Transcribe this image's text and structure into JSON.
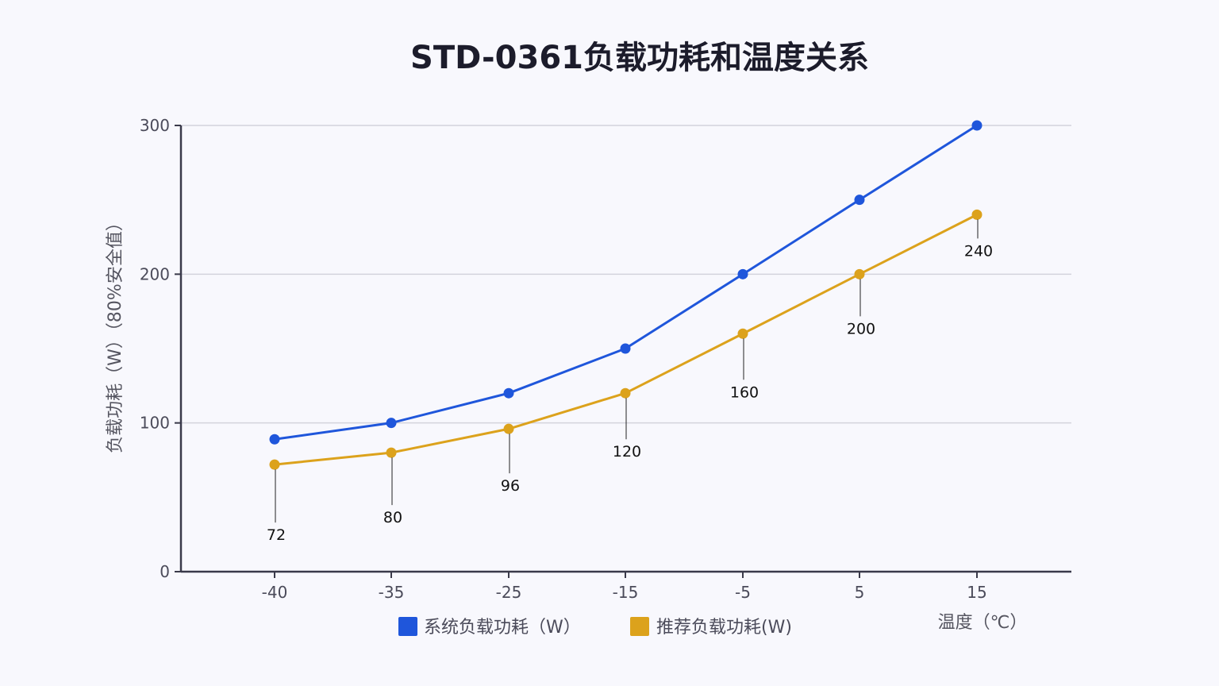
{
  "chart_data": {
    "type": "line",
    "title": "STD-0361负载功耗和温度关系",
    "xlabel": "温度（℃）",
    "ylabel": "负载功耗（W）（80%安全值）",
    "x": [
      -40,
      -35,
      -25,
      -15,
      -5,
      5,
      15
    ],
    "x_tick_labels": [
      "-40",
      "-35",
      "-25",
      "-15",
      "-5",
      "5",
      "15"
    ],
    "ylim": [
      0,
      300
    ],
    "y_ticks": [
      0,
      100,
      200,
      300
    ],
    "y_tick_labels": [
      "0",
      "100",
      "200",
      "300"
    ],
    "grid": true,
    "legend_position": "bottom",
    "series": [
      {
        "name": "系统负载功耗（W）",
        "color": "#1f56db",
        "values": [
          89,
          100,
          120,
          150,
          200,
          250,
          300
        ],
        "show_labels": false
      },
      {
        "name": "推荐负载功耗(W)",
        "color": "#dca21c",
        "values": [
          72,
          80,
          96,
          120,
          160,
          200,
          240
        ],
        "data_labels": [
          "72",
          "80",
          "96",
          "120",
          "160",
          "200",
          "240"
        ],
        "show_labels": true
      }
    ]
  }
}
